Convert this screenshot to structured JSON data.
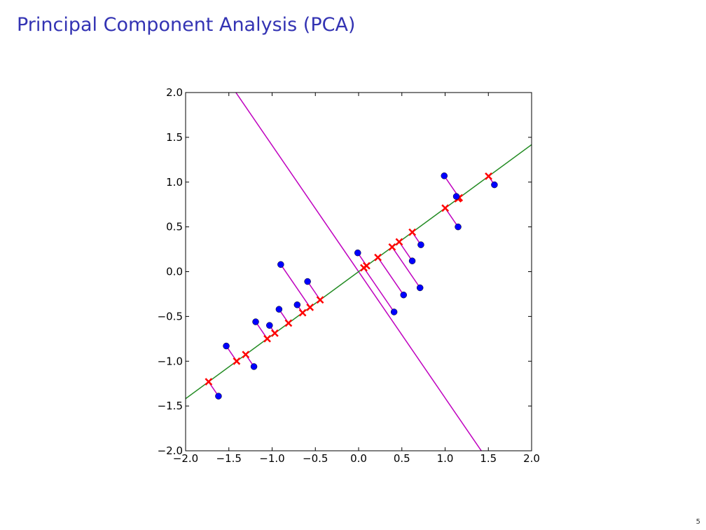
{
  "slide": {
    "title": "Principal Component Analysis (PCA)",
    "page_number": "5"
  },
  "chart_data": {
    "type": "scatter",
    "title": "",
    "xlabel": "",
    "ylabel": "",
    "xlim": [
      -2.0,
      2.0
    ],
    "ylim": [
      -2.0,
      2.0
    ],
    "grid": false,
    "xticks": [
      "−2.0",
      "−1.5",
      "−1.0",
      "−0.5",
      "0.0",
      "0.5",
      "1.0",
      "1.5",
      "2.0"
    ],
    "yticks": [
      "−2.0",
      "−1.5",
      "−1.0",
      "−0.5",
      "0.0",
      "0.5",
      "1.0",
      "1.5",
      "2.0"
    ],
    "principal_axis": {
      "slope": 0.709,
      "intercept": 0.0,
      "color": "#228b22"
    },
    "orthogonal_axis": {
      "slope": -1.41,
      "intercept": 0.0,
      "color": "#bf00bf"
    },
    "points_color": "#0000ff",
    "projection_color": "#ff0000",
    "link_color": "#bf00bf",
    "points": [
      [
        -1.62,
        -1.39
      ],
      [
        -1.53,
        -0.83
      ],
      [
        -1.21,
        -1.06
      ],
      [
        -1.19,
        -0.56
      ],
      [
        -1.03,
        -0.6
      ],
      [
        -0.92,
        -0.42
      ],
      [
        -0.9,
        0.08
      ],
      [
        -0.71,
        -0.37
      ],
      [
        -0.59,
        -0.11
      ],
      [
        -0.01,
        0.21
      ],
      [
        0.41,
        -0.45
      ],
      [
        0.52,
        -0.26
      ],
      [
        0.62,
        0.12
      ],
      [
        0.71,
        -0.18
      ],
      [
        0.72,
        0.3
      ],
      [
        0.99,
        1.07
      ],
      [
        1.13,
        0.84
      ],
      [
        1.15,
        0.5
      ],
      [
        1.57,
        0.97
      ]
    ]
  }
}
